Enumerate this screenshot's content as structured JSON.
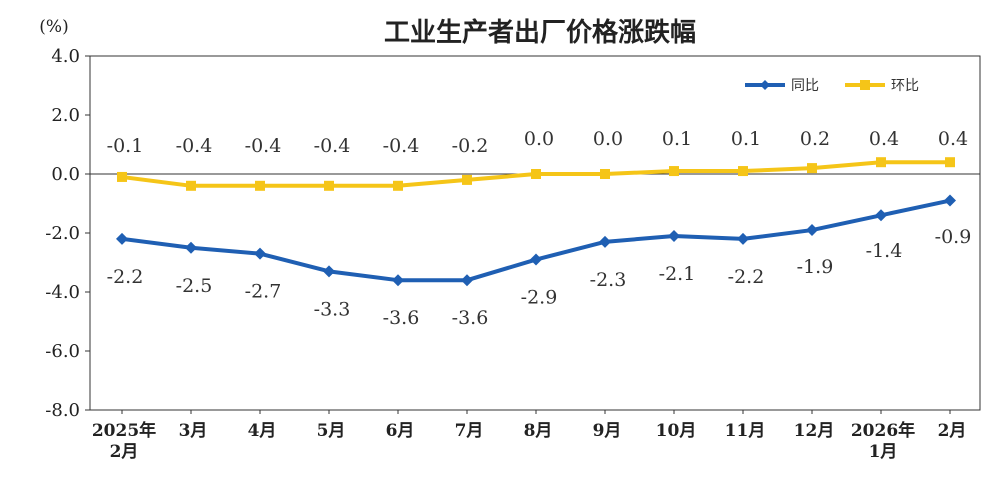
{
  "chart_data": {
    "type": "line",
    "title": "工业生产者出厂价格涨跌幅",
    "unit_label": "(%)",
    "categories": [
      [
        "2025年",
        "2月"
      ],
      [
        "3月"
      ],
      [
        "4月"
      ],
      [
        "5月"
      ],
      [
        "6月"
      ],
      [
        "7月"
      ],
      [
        "8月"
      ],
      [
        "9月"
      ],
      [
        "10月"
      ],
      [
        "11月"
      ],
      [
        "12月"
      ],
      [
        "2026年",
        "1月"
      ],
      [
        "2月"
      ]
    ],
    "ylim": [
      -8.0,
      4.0
    ],
    "yticks": [
      "4.0",
      "2.0",
      "0.0",
      "-2.0",
      "-4.0",
      "-6.0",
      "-8.0"
    ],
    "grid": false,
    "legend_position": "top-right",
    "series": [
      {
        "name": "同比",
        "color": "#1f5fb3",
        "marker": "diamond",
        "values": [
          -2.2,
          -2.5,
          -2.7,
          -3.3,
          -3.6,
          -3.6,
          -2.9,
          -2.3,
          -2.1,
          -2.2,
          -1.9,
          -1.4,
          -0.9
        ],
        "labels": [
          "-2.2",
          "-2.5",
          "-2.7",
          "-3.3",
          "-3.6",
          "-3.6",
          "-2.9",
          "-2.3",
          "-2.1",
          "-2.2",
          "-1.9",
          "-1.4",
          "-0.9"
        ]
      },
      {
        "name": "环比",
        "color": "#f5c518",
        "marker": "square",
        "values": [
          -0.1,
          -0.4,
          -0.4,
          -0.4,
          -0.4,
          -0.2,
          0.0,
          0.0,
          0.1,
          0.1,
          0.2,
          0.4,
          0.4
        ],
        "labels": [
          "-0.1",
          "-0.4",
          "-0.4",
          "-0.4",
          "-0.4",
          "-0.2",
          "0.0",
          "0.0",
          "0.1",
          "0.1",
          "0.2",
          "0.4",
          "0.4"
        ]
      }
    ]
  }
}
